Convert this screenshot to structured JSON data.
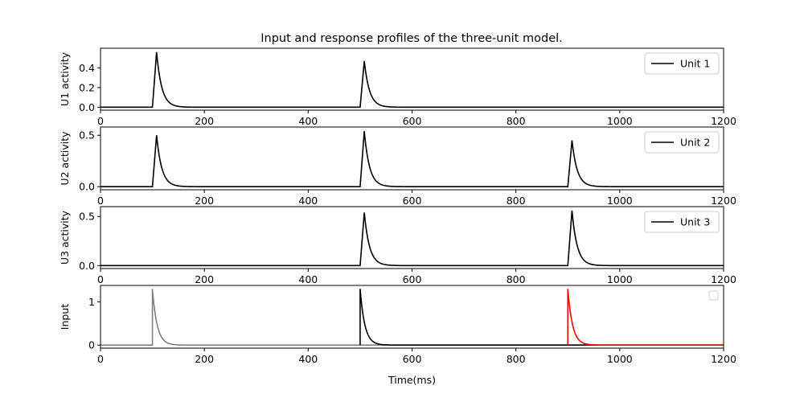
{
  "title": "Input and response profiles of the three-unit model.",
  "chart_data": [
    {
      "type": "line",
      "ylabel": "U1 activity",
      "xlim": [
        0,
        1200
      ],
      "ylim": [
        -0.03,
        0.6
      ],
      "xticks": [
        0,
        200,
        400,
        600,
        800,
        1000,
        1200
      ],
      "yticks": [
        0.0,
        0.2,
        0.4
      ],
      "ytick_labels": [
        "0.0",
        "0.2",
        "0.4"
      ],
      "legend": "top-right",
      "series": [
        {
          "name": "Unit 1",
          "color": "#000000",
          "pulses": [
            {
              "onset": 100,
              "peak": 0.56
            },
            {
              "onset": 500,
              "peak": 0.47
            }
          ]
        }
      ]
    },
    {
      "type": "line",
      "ylabel": "U2 activity",
      "xlim": [
        0,
        1200
      ],
      "ylim": [
        -0.03,
        0.58
      ],
      "xticks": [
        0,
        200,
        400,
        600,
        800,
        1000,
        1200
      ],
      "yticks": [
        0.0,
        0.5
      ],
      "ytick_labels": [
        "0.0",
        "0.5"
      ],
      "legend": "top-right",
      "series": [
        {
          "name": "Unit 2",
          "color": "#000000",
          "pulses": [
            {
              "onset": 100,
              "peak": 0.5
            },
            {
              "onset": 500,
              "peak": 0.54
            },
            {
              "onset": 900,
              "peak": 0.45
            }
          ]
        }
      ]
    },
    {
      "type": "line",
      "ylabel": "U3 activity",
      "xlim": [
        0,
        1200
      ],
      "ylim": [
        -0.03,
        0.6
      ],
      "xticks": [
        0,
        200,
        400,
        600,
        800,
        1000,
        1200
      ],
      "yticks": [
        0.0,
        0.5
      ],
      "ytick_labels": [
        "0.0",
        "0.5"
      ],
      "legend": "top-right",
      "series": [
        {
          "name": "Unit 3",
          "color": "#000000",
          "pulses": [
            {
              "onset": 500,
              "peak": 0.54
            },
            {
              "onset": 900,
              "peak": 0.56
            }
          ]
        }
      ]
    },
    {
      "type": "line",
      "ylabel": "Input",
      "xlabel": "Time(ms)",
      "xlim": [
        0,
        1200
      ],
      "ylim": [
        -0.07,
        1.38
      ],
      "xticks": [
        0,
        200,
        400,
        600,
        800,
        1000,
        1200
      ],
      "yticks": [
        0,
        1
      ],
      "ytick_labels": [
        "0",
        "1"
      ],
      "legend": "top-right (empty)",
      "series": [
        {
          "color": "#808080",
          "pulses": [
            {
              "onset": 100,
              "peak": 1.3
            }
          ]
        },
        {
          "color": "#000000",
          "pulses": [
            {
              "onset": 500,
              "peak": 1.3
            }
          ]
        },
        {
          "color": "#ff0000",
          "pulses": [
            {
              "onset": 900,
              "peak": 1.3
            }
          ]
        }
      ]
    }
  ]
}
